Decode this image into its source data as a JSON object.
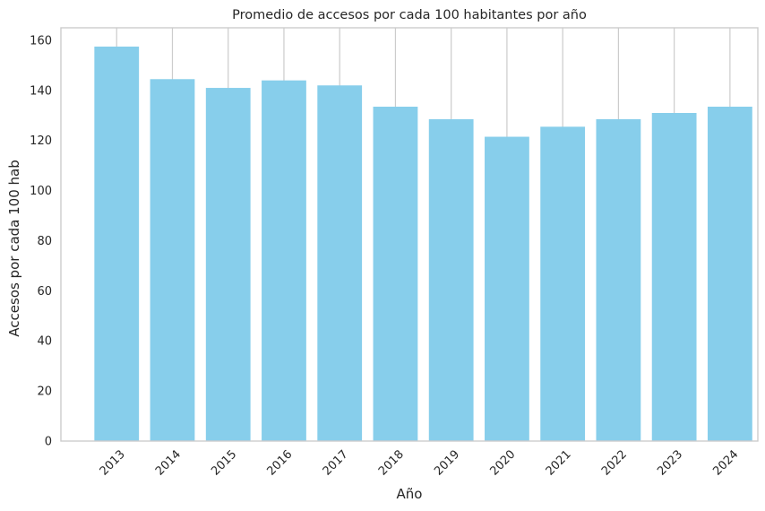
{
  "chart_data": {
    "type": "bar",
    "title": "Promedio de accesos por cada 100 habitantes por año",
    "xlabel": "Año",
    "ylabel": "Accesos por cada 100 hab",
    "categories": [
      "2013",
      "2014",
      "2015",
      "2016",
      "2017",
      "2018",
      "2019",
      "2020",
      "2021",
      "2022",
      "2023",
      "2024"
    ],
    "values": [
      157.5,
      144.5,
      141,
      144,
      142,
      133.5,
      128.5,
      121.5,
      125.5,
      128.5,
      131,
      133.5
    ],
    "ylim": [
      0,
      165
    ],
    "yticks": [
      0,
      20,
      40,
      60,
      80,
      100,
      120,
      140,
      160
    ],
    "grid": "vertical",
    "bar_color": "#87ceeb",
    "grid_color": "#cccccc",
    "axis_color": "#cccccc",
    "text_color": "#262626"
  }
}
